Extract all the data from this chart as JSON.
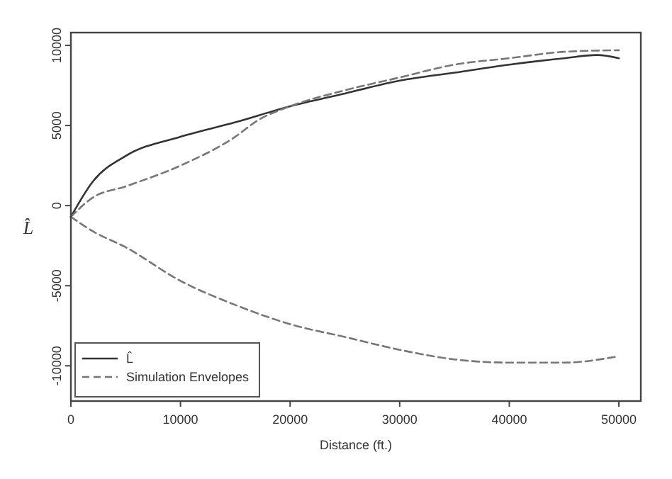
{
  "chart_data": {
    "type": "line",
    "xlabel": "Distance (ft.)",
    "ylabel": "L̂",
    "xlim": [
      0,
      52000
    ],
    "ylim": [
      -12200,
      10800
    ],
    "xticks": [
      0,
      10000,
      20000,
      30000,
      40000,
      50000
    ],
    "yticks": [
      -10000,
      -5000,
      0,
      5000,
      10000
    ],
    "grid": false,
    "legend": "bottom left",
    "marker": "none",
    "series": [
      {
        "name": "L̂",
        "color": "#333333",
        "line_style": "solid",
        "x": [
          0,
          2000,
          5000,
          10000,
          15000,
          20000,
          25000,
          30000,
          35000,
          40000,
          45000,
          48000,
          50000
        ],
        "values": [
          -700,
          1500,
          3100,
          4300,
          5200,
          6200,
          7000,
          7800,
          8300,
          8800,
          9200,
          9400,
          9200
        ]
      },
      {
        "name": "Simulation Envelopes",
        "color": "#777777",
        "line_style": "dashed",
        "x": [
          0,
          2000,
          5000,
          10000,
          15000,
          17000,
          20000,
          25000,
          30000,
          35000,
          40000,
          45000,
          50000
        ],
        "values": [
          -700,
          500,
          1200,
          2500,
          4300,
          5300,
          6200,
          7200,
          8000,
          8800,
          9200,
          9600,
          9700
        ]
      },
      {
        "color": "#777777",
        "line_style": "dashed",
        "x": [
          0,
          2000,
          5000,
          10000,
          15000,
          20000,
          25000,
          30000,
          35000,
          40000,
          45000,
          50000
        ],
        "values": [
          -700,
          -1600,
          -2600,
          -4700,
          -6200,
          -7400,
          -8200,
          -9000,
          -9600,
          -9800,
          -9800,
          -9400
        ]
      }
    ]
  }
}
